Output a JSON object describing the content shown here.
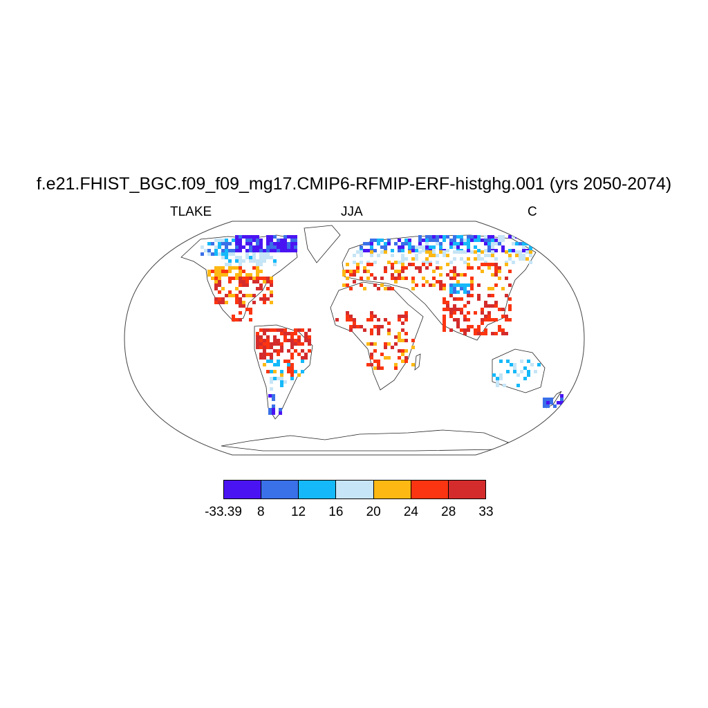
{
  "title": "f.e21.FHIST_BGC.f09_f09_mg17.CMIP6-RFMIP-ERF-histghg.001 (yrs 2050-2074)",
  "left_label": "TLAKE",
  "center_label": "JJA",
  "right_label": "C",
  "colorbar": {
    "colors": [
      "#4a14f2",
      "#3a70e8",
      "#15b9f9",
      "#c6e5f6",
      "#fdb813",
      "#fb3511",
      "#d42c2c"
    ],
    "labels": [
      "-33.39",
      "8",
      "12",
      "16",
      "20",
      "24",
      "28",
      "33"
    ]
  },
  "map": {
    "projection": "Robinson",
    "variable": "TLAKE",
    "season": "JJA",
    "units": "C"
  }
}
